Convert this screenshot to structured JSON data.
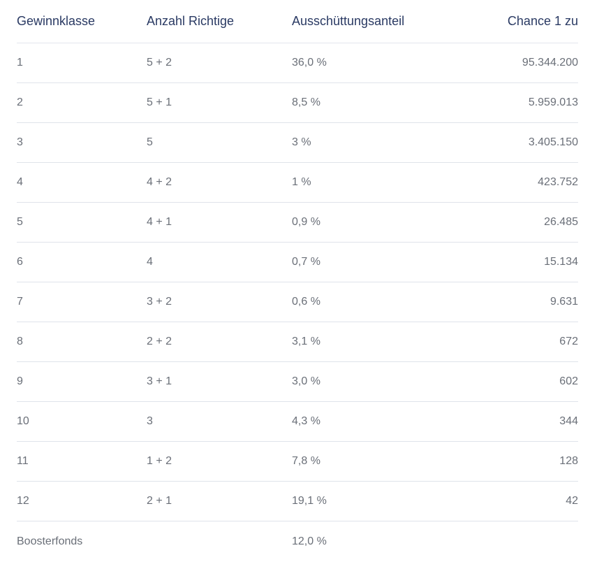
{
  "table": {
    "headers": [
      "Gewinnklasse",
      "Anzahl Richtige",
      "Ausschüttungsanteil",
      "Chance 1 zu"
    ],
    "rows": [
      [
        "1",
        "5 + 2",
        "36,0 %",
        "95.344.200"
      ],
      [
        "2",
        "5 + 1",
        "8,5 %",
        "5.959.013"
      ],
      [
        "3",
        "5",
        "3 %",
        "3.405.150"
      ],
      [
        "4",
        "4 + 2",
        "1 %",
        "423.752"
      ],
      [
        "5",
        "4 + 1",
        "0,9 %",
        "26.485"
      ],
      [
        "6",
        "4",
        "0,7 %",
        "15.134"
      ],
      [
        "7",
        "3 + 2",
        "0,6 %",
        "9.631"
      ],
      [
        "8",
        "2 + 2",
        "3,1 %",
        "672"
      ],
      [
        "9",
        "3 + 1",
        "3,0 %",
        "602"
      ],
      [
        "10",
        "3",
        "4,3 %",
        "344"
      ],
      [
        "11",
        "1 + 2",
        "7,8 %",
        "128"
      ],
      [
        "12",
        "2 + 1",
        "19,1 %",
        "42"
      ],
      [
        "Boosterfonds",
        "",
        "12,0 %",
        ""
      ]
    ]
  }
}
